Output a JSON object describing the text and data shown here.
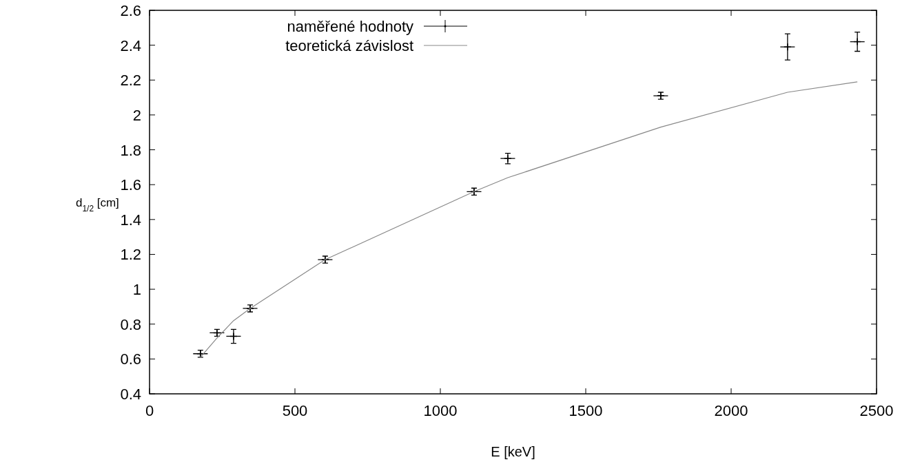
{
  "chart_data": {
    "type": "scatter",
    "xlabel": "E [keV]",
    "ylabel": "d$_{1/2}$ [cm]",
    "xlim": [
      0,
      2500
    ],
    "xticks": [
      0,
      500,
      1000,
      1500,
      2000,
      2500
    ],
    "ylim": [
      0.4,
      2.6
    ],
    "yticks": [
      0.4,
      0.6,
      0.8,
      1,
      1.2,
      1.4,
      1.6,
      1.8,
      2,
      2.2,
      2.4,
      2.6
    ],
    "grid": false,
    "legend": "top left",
    "series": [
      {
        "name": "naměřené hodnoty",
        "color": "#000000",
        "marker": "cross",
        "x": [
          175,
          232,
          289,
          346,
          604,
          1116,
          1232,
          1758,
          2194,
          2434
        ],
        "values": [
          0.63,
          0.75,
          0.73,
          0.89,
          1.17,
          1.56,
          1.75,
          2.11,
          2.39,
          2.42
        ],
        "errors": [
          0.02,
          0.02,
          0.04,
          0.02,
          0.02,
          0.02,
          0.03,
          0.02,
          0.075,
          0.055
        ],
        "xerrors": [
          25,
          25,
          25,
          25,
          25,
          25,
          25,
          25,
          25,
          25
        ]
      },
      {
        "name": "teoretická závislost",
        "type": "line",
        "color": "#888888",
        "line_style": "solid",
        "x": [
          175,
          232,
          289,
          346,
          604,
          1116,
          1232,
          1758,
          2194,
          2434
        ],
        "values": [
          0.61,
          0.72,
          0.82,
          0.89,
          1.17,
          1.56,
          1.64,
          1.93,
          2.13,
          2.19
        ]
      }
    ]
  }
}
